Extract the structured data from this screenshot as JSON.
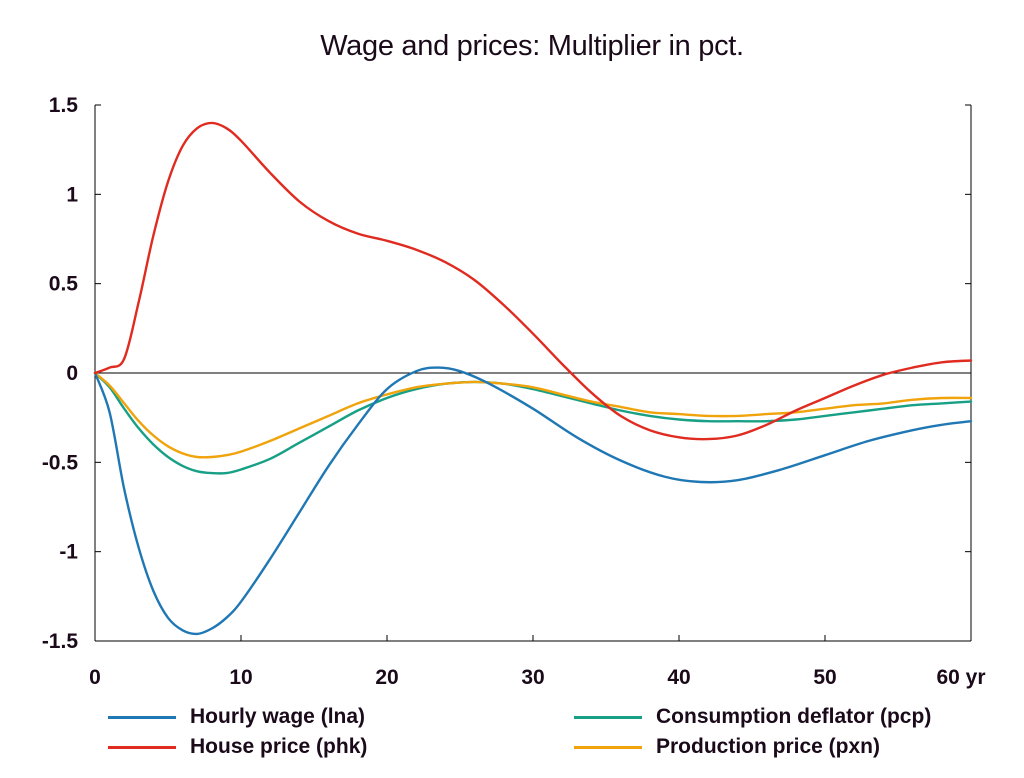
{
  "chart_data": {
    "type": "line",
    "title": "Wage and prices: Multiplier in pct.",
    "xlabel": "",
    "ylabel": "",
    "x_unit": "yr",
    "xlim": [
      0,
      60
    ],
    "ylim": [
      -1.5,
      1.5
    ],
    "x_ticks": [
      0,
      10,
      20,
      30,
      40,
      50,
      60
    ],
    "x_tick_labels": [
      "0",
      "10",
      "20",
      "30",
      "40",
      "50",
      "60 yr"
    ],
    "y_ticks": [
      1.5,
      1,
      0.5,
      0,
      -0.5,
      -1,
      -1.5
    ],
    "y_tick_labels": [
      "1.5",
      "1",
      "0.5",
      "0",
      "-0.5",
      "-1",
      "-1.5"
    ],
    "zero_line": true,
    "grid": false,
    "legend_position": "bottom",
    "series": [
      {
        "name": "Hourly wage (lna)",
        "color": "#1f77b4",
        "x": [
          0,
          1,
          2,
          3,
          4,
          5,
          6,
          7,
          8,
          9,
          10,
          12,
          14,
          16,
          18,
          20,
          22,
          23.5,
          25,
          27,
          30,
          33,
          36,
          39,
          41.5,
          44,
          47,
          50,
          53,
          56,
          58,
          60
        ],
        "y": [
          0,
          -0.22,
          -0.65,
          -0.98,
          -1.22,
          -1.37,
          -1.44,
          -1.46,
          -1.43,
          -1.37,
          -1.28,
          -1.04,
          -0.78,
          -0.52,
          -0.29,
          -0.09,
          0.01,
          0.03,
          0.01,
          -0.06,
          -0.2,
          -0.36,
          -0.49,
          -0.58,
          -0.61,
          -0.6,
          -0.54,
          -0.46,
          -0.38,
          -0.32,
          -0.29,
          -0.27
        ]
      },
      {
        "name": "House price (phk)",
        "color": "#e02b20",
        "x": [
          0,
          1,
          2,
          3,
          4,
          5,
          6,
          7,
          8,
          9,
          10,
          12,
          14,
          16,
          18,
          20,
          22,
          24,
          26,
          28,
          30,
          32,
          34,
          36,
          38,
          40,
          42,
          44,
          46,
          48,
          50,
          52,
          54,
          56,
          58,
          60
        ],
        "y": [
          0,
          0.03,
          0.08,
          0.4,
          0.77,
          1.07,
          1.27,
          1.37,
          1.4,
          1.37,
          1.3,
          1.12,
          0.96,
          0.85,
          0.78,
          0.74,
          0.69,
          0.62,
          0.52,
          0.38,
          0.22,
          0.05,
          -0.11,
          -0.24,
          -0.32,
          -0.36,
          -0.37,
          -0.35,
          -0.29,
          -0.21,
          -0.14,
          -0.07,
          -0.01,
          0.03,
          0.06,
          0.07
        ]
      },
      {
        "name": "Consumption deflator (pcp)",
        "color": "#17a085",
        "x": [
          0,
          1,
          2,
          3,
          4,
          5,
          6,
          7,
          8,
          9,
          10,
          12,
          14,
          16,
          18,
          20,
          22,
          24,
          26,
          28,
          30,
          32,
          34,
          36,
          38,
          40,
          42,
          44,
          46,
          48,
          50,
          52,
          54,
          56,
          58,
          60
        ],
        "y": [
          0,
          -0.08,
          -0.2,
          -0.31,
          -0.4,
          -0.47,
          -0.52,
          -0.55,
          -0.56,
          -0.56,
          -0.54,
          -0.48,
          -0.39,
          -0.3,
          -0.21,
          -0.14,
          -0.09,
          -0.06,
          -0.05,
          -0.06,
          -0.09,
          -0.13,
          -0.17,
          -0.21,
          -0.24,
          -0.26,
          -0.27,
          -0.27,
          -0.27,
          -0.26,
          -0.24,
          -0.22,
          -0.2,
          -0.18,
          -0.17,
          -0.16
        ]
      },
      {
        "name": "Production price (pxn)",
        "color": "#f0a30a",
        "x": [
          0,
          1,
          2,
          3,
          4,
          5,
          6,
          7,
          8,
          9,
          10,
          12,
          14,
          16,
          18,
          20,
          22,
          24,
          26,
          28,
          30,
          32,
          34,
          36,
          38,
          40,
          42,
          44,
          46,
          48,
          50,
          52,
          54,
          56,
          58,
          60
        ],
        "y": [
          0,
          -0.07,
          -0.17,
          -0.27,
          -0.35,
          -0.41,
          -0.45,
          -0.47,
          -0.47,
          -0.46,
          -0.44,
          -0.38,
          -0.31,
          -0.24,
          -0.17,
          -0.12,
          -0.08,
          -0.06,
          -0.05,
          -0.06,
          -0.08,
          -0.12,
          -0.16,
          -0.19,
          -0.22,
          -0.23,
          -0.24,
          -0.24,
          -0.23,
          -0.22,
          -0.2,
          -0.18,
          -0.17,
          -0.15,
          -0.14,
          -0.14
        ]
      }
    ]
  }
}
